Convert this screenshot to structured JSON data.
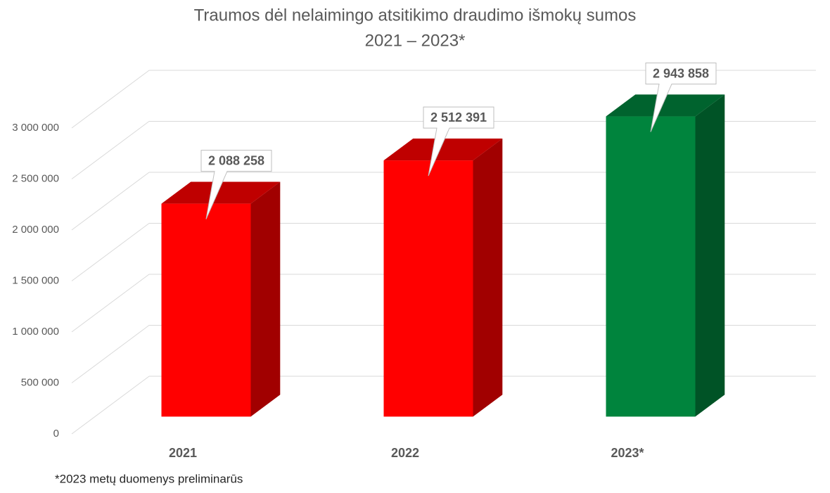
{
  "chart_data": {
    "type": "bar3d",
    "title": [
      "Traumos dėl nelaimingo atsitikimo draudimo išmokų sumos",
      "2021 – 2023*"
    ],
    "categories": [
      "2021",
      "2022",
      "2023*"
    ],
    "values": [
      2088258,
      2512391,
      2943858
    ],
    "value_labels": [
      "2 088 258",
      "2 512 391",
      "2 943 858"
    ],
    "colors": [
      "#ff0000",
      "#ff0000",
      "#00843d"
    ],
    "ylim": [
      0,
      3000000
    ],
    "yticks": [
      0,
      {
        "value": 500000,
        "label": "500 000"
      },
      {
        "value": 1000000,
        "label": "1 000 000"
      },
      {
        "value": 1500000,
        "label": "1 500 000"
      },
      {
        "value": 2000000,
        "label": "2 000 000"
      },
      {
        "value": 2500000,
        "label": "2 500 000"
      },
      {
        "value": 3000000,
        "label": "3 000 000"
      }
    ],
    "grid": true,
    "footnote": "*2023 metų duomenys preliminarūs"
  }
}
